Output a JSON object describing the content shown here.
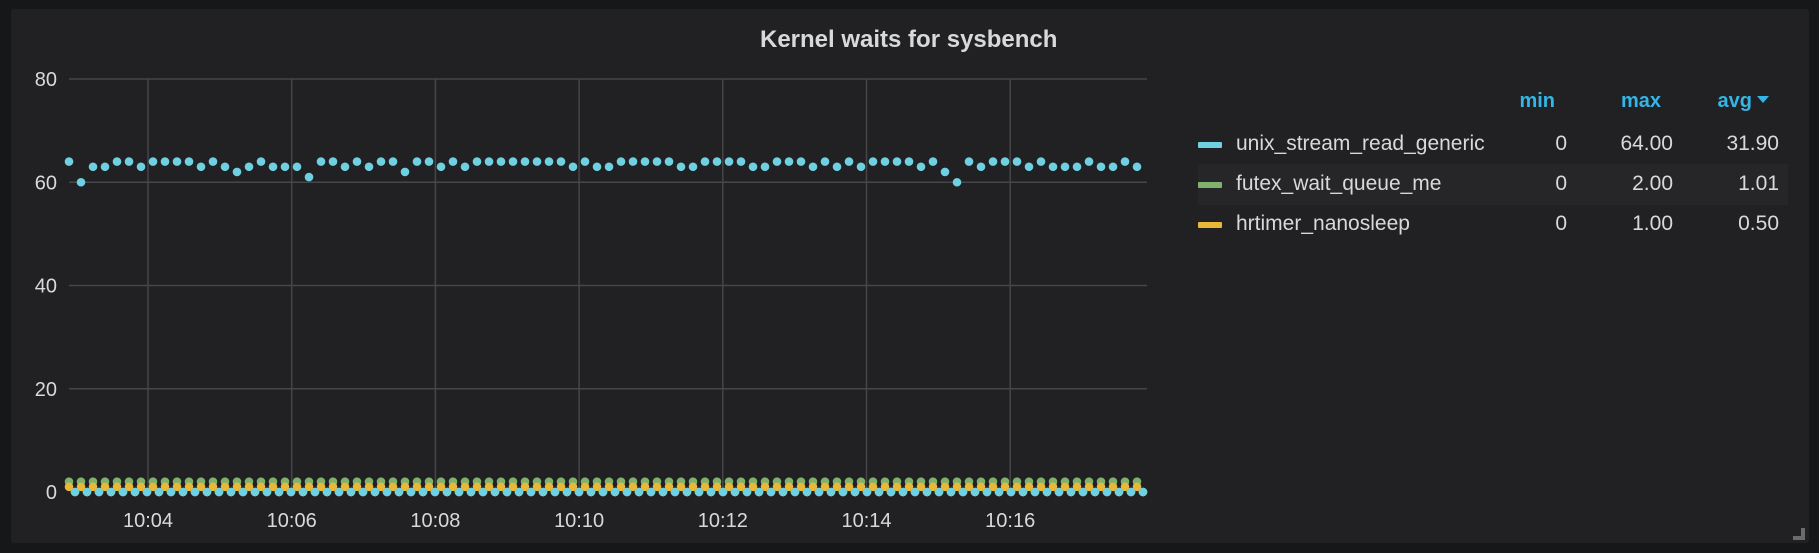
{
  "panel": {
    "title": "Kernel waits for sysbench"
  },
  "legend": {
    "headers": {
      "min": "min",
      "max": "max",
      "avg": "avg"
    },
    "sort_column": "avg",
    "sort_direction": "desc",
    "series": [
      {
        "name": "unix_stream_read_generic",
        "color": "#6ed0e0",
        "min": "0",
        "max": "64.00",
        "avg": "31.90"
      },
      {
        "name": "futex_wait_queue_me",
        "color": "#7eb26d",
        "min": "0",
        "max": "2.00",
        "avg": "1.01"
      },
      {
        "name": "hrtimer_nanosleep",
        "color": "#eab839",
        "min": "0",
        "max": "1.00",
        "avg": "0.50"
      }
    ]
  },
  "chart_data": {
    "type": "scatter",
    "title": "Kernel waits for sysbench",
    "xlabel": "",
    "ylabel": "",
    "ylim": [
      0,
      80
    ],
    "yticks": [
      0,
      20,
      40,
      60,
      80
    ],
    "xticks": [
      "10:04",
      "10:06",
      "10:08",
      "10:10",
      "10:12",
      "10:14",
      "10:16"
    ],
    "grid": true,
    "legend_position": "right",
    "x_start": "10:02:53",
    "x_step_seconds": 5,
    "series": [
      {
        "name": "unix_stream_read_generic",
        "color": "#6ed0e0",
        "pattern": "alternating: sampled value, then 0",
        "sampled_values": [
          64,
          60,
          63,
          63,
          64,
          64,
          63,
          64,
          64,
          64,
          64,
          63,
          64,
          63,
          62,
          63,
          64,
          63,
          63,
          63,
          61,
          64,
          64,
          63,
          64,
          63,
          64,
          64,
          62,
          64,
          64,
          63,
          64,
          63,
          64,
          64,
          64,
          64,
          64,
          64,
          64,
          64,
          63,
          64,
          63,
          63,
          64,
          64,
          64,
          64,
          64,
          63,
          63,
          64,
          64,
          64,
          64,
          63,
          63,
          64,
          64,
          64,
          63,
          64,
          63,
          64,
          63,
          64,
          64,
          64,
          64,
          63,
          64,
          62,
          60,
          64,
          63,
          64,
          64,
          64,
          63,
          64,
          63,
          63,
          63,
          64,
          63,
          63,
          64,
          63
        ],
        "alternate_value": 0
      },
      {
        "name": "futex_wait_queue_me",
        "color": "#7eb26d",
        "pattern": "alternating: 2, then 0",
        "sampled_value": 2,
        "alternate_value": 0,
        "points": 180
      },
      {
        "name": "hrtimer_nanosleep",
        "color": "#eab839",
        "pattern": "alternating: 1, then 0",
        "sampled_value": 1,
        "alternate_value": 0,
        "points": 180
      }
    ]
  }
}
